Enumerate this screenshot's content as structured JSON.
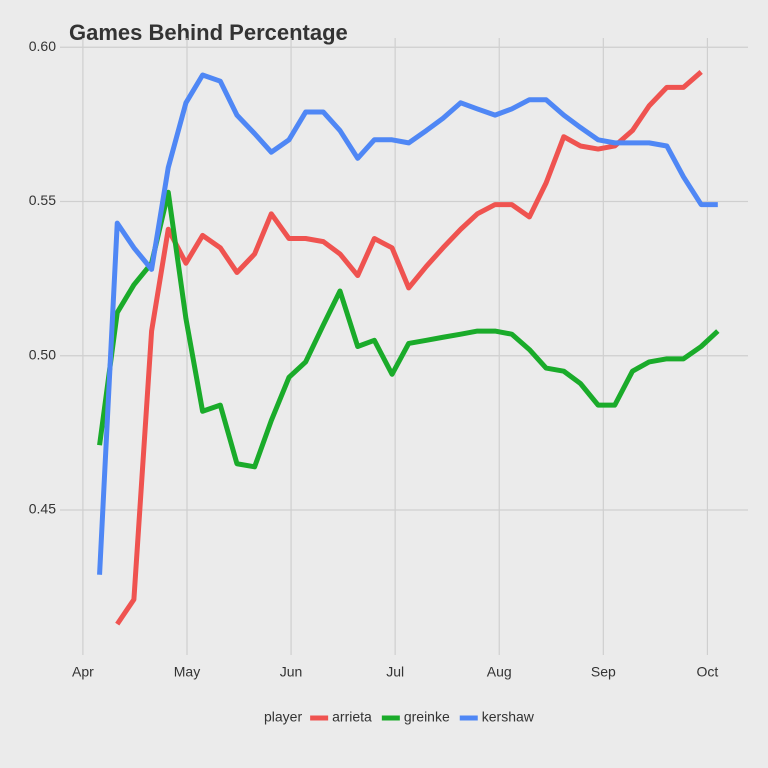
{
  "chart_data": {
    "type": "line",
    "title": "Games Behind Percentage",
    "legend_title": "player",
    "legend": "bottom",
    "grid": true,
    "x": [
      0.16,
      0.33,
      0.49,
      0.66,
      0.82,
      0.99,
      1.15,
      1.32,
      1.48,
      1.65,
      1.81,
      1.98,
      2.14,
      2.31,
      2.47,
      2.64,
      2.8,
      2.97,
      3.13,
      3.3,
      3.46,
      3.63,
      3.79,
      3.96,
      4.12,
      4.29,
      4.45,
      4.62,
      4.78,
      4.95,
      5.11,
      5.28,
      5.44,
      5.61,
      5.77,
      5.94,
      6.1
    ],
    "series": [
      {
        "name": "arrieta",
        "color": "#ef5350",
        "values": [
          null,
          0.413,
          0.421,
          0.508,
          0.541,
          0.53,
          0.539,
          0.535,
          0.527,
          0.533,
          0.546,
          0.538,
          0.538,
          0.537,
          0.533,
          0.526,
          0.538,
          0.535,
          0.522,
          0.529,
          0.535,
          0.541,
          0.546,
          0.549,
          0.549,
          0.545,
          0.556,
          0.571,
          0.568,
          0.567,
          0.568,
          0.573,
          0.581,
          0.587,
          0.587,
          0.592,
          null
        ]
      },
      {
        "name": "greinke",
        "color": "#1aab2a",
        "values": [
          0.471,
          0.514,
          0.523,
          0.53,
          0.553,
          0.512,
          0.482,
          0.484,
          0.465,
          0.464,
          0.479,
          0.493,
          0.498,
          0.51,
          0.521,
          0.503,
          0.505,
          0.494,
          0.504,
          0.505,
          0.506,
          0.507,
          0.508,
          0.508,
          0.507,
          0.502,
          0.496,
          0.495,
          0.491,
          0.484,
          0.484,
          0.495,
          0.498,
          0.499,
          0.499,
          0.503,
          0.508
        ]
      },
      {
        "name": "kershaw",
        "color": "#4f87f5",
        "values": [
          0.429,
          0.543,
          0.535,
          0.528,
          0.561,
          0.582,
          0.591,
          0.589,
          0.578,
          0.572,
          0.566,
          0.57,
          0.579,
          0.579,
          0.573,
          0.564,
          0.57,
          0.57,
          0.569,
          0.573,
          0.577,
          0.582,
          0.58,
          0.578,
          0.58,
          0.583,
          0.583,
          0.578,
          0.574,
          0.57,
          0.569,
          0.569,
          0.569,
          0.568,
          0.558,
          0.549,
          0.549
        ]
      }
    ],
    "xlim": [
      -0.22,
      6.39
    ],
    "xticks": [
      {
        "value": 0,
        "label": "Apr"
      },
      {
        "value": 1,
        "label": "May"
      },
      {
        "value": 2,
        "label": "Jun"
      },
      {
        "value": 3,
        "label": "Jul"
      },
      {
        "value": 4,
        "label": "Aug"
      },
      {
        "value": 5,
        "label": "Sep"
      },
      {
        "value": 6,
        "label": "Oct"
      }
    ],
    "ylim": [
      0.403,
      0.603
    ],
    "yticks": [
      {
        "value": 0.45,
        "label": "0.45"
      },
      {
        "value": 0.5,
        "label": "0.50"
      },
      {
        "value": 0.55,
        "label": "0.55"
      },
      {
        "value": 0.6,
        "label": "0.60"
      }
    ]
  }
}
